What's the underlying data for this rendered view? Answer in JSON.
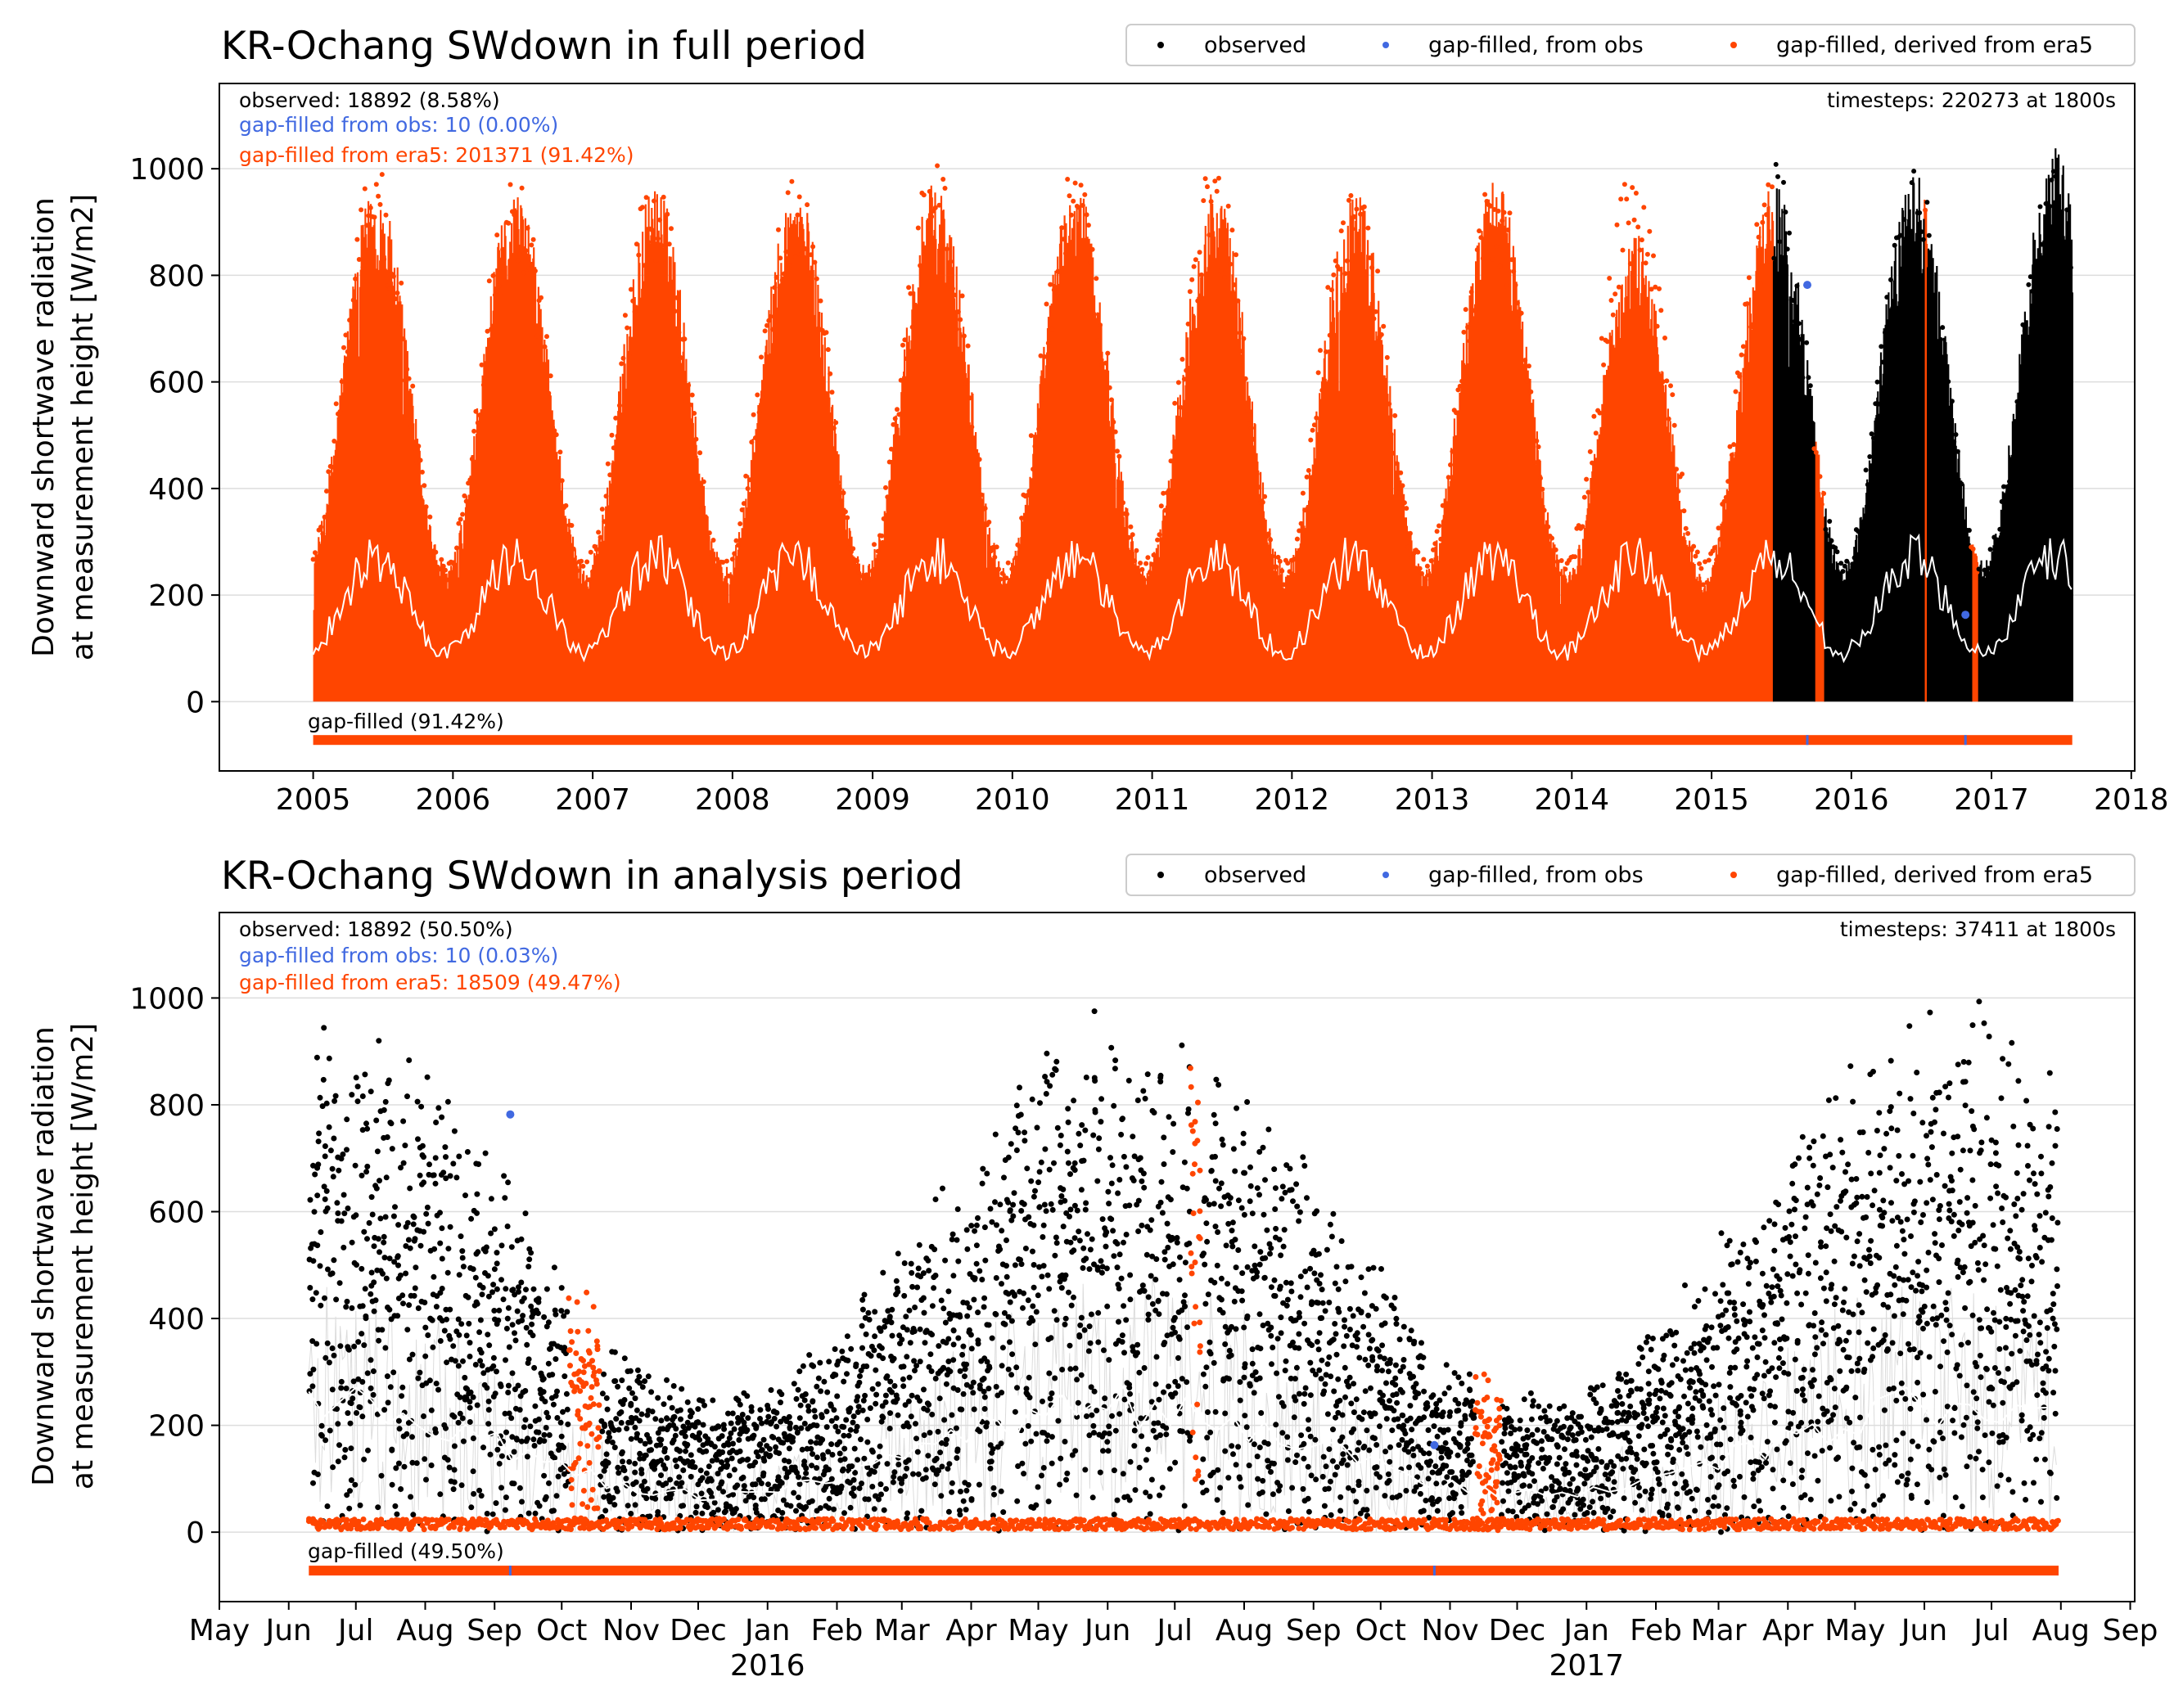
{
  "colors": {
    "observed": "#000000",
    "gap_obs": "#4169e1",
    "gap_era5": "#ff4500",
    "mean_line": "#ffffff",
    "grid": "#dddddd"
  },
  "chart_data": [
    {
      "type": "scatter",
      "title": "KR-Ochang SWdown in full period",
      "ylabel": [
        "Downward shortwave radiation",
        "at measurement height [W/m2]"
      ],
      "ylim": [
        -130,
        1160
      ],
      "yticks": [
        0,
        200,
        400,
        600,
        800,
        1000
      ],
      "xlim": [
        "2004-05-01",
        "2018-01-10"
      ],
      "xticks": [
        {
          "date": "2005-01-01",
          "label": "2005"
        },
        {
          "date": "2006-01-01",
          "label": "2006"
        },
        {
          "date": "2007-01-01",
          "label": "2007"
        },
        {
          "date": "2008-01-01",
          "label": "2008"
        },
        {
          "date": "2009-01-01",
          "label": "2009"
        },
        {
          "date": "2010-01-01",
          "label": "2010"
        },
        {
          "date": "2011-01-01",
          "label": "2011"
        },
        {
          "date": "2012-01-01",
          "label": "2012"
        },
        {
          "date": "2013-01-01",
          "label": "2013"
        },
        {
          "date": "2014-01-01",
          "label": "2014"
        },
        {
          "date": "2015-01-01",
          "label": "2015"
        },
        {
          "date": "2016-01-01",
          "label": "2016"
        },
        {
          "date": "2017-01-01",
          "label": "2017"
        },
        {
          "date": "2018-01-01",
          "label": "2018"
        }
      ],
      "period": [
        "2005-01-01",
        "2017-07-31"
      ],
      "observed_from": "2015-06-10",
      "stats": {
        "observed": "observed: 18892 (8.58%)",
        "gap_obs": "gap-filled from obs: 10 (0.00%)",
        "gap_era5": "gap-filled from era5: 201371 (91.42%)",
        "timesteps": "timesteps: 220273 at 1800s",
        "gapfilled": "gap-filled (91.42%)"
      },
      "legend": [
        "observed",
        "gap-filled, from obs",
        "gap-filled, derived from era5"
      ],
      "era5_gaps": [
        [
          "2015-09-25",
          "2015-10-20"
        ],
        [
          "2016-07-08",
          "2016-07-14"
        ],
        [
          "2016-11-08",
          "2016-11-25"
        ]
      ],
      "annual_peaks": [
        970,
        965,
        975,
        970,
        975,
        970,
        965,
        960,
        985,
        880,
        975,
        1000,
        1040
      ],
      "mean_line_range": [
        90,
        290
      ],
      "gap_obs_points": [
        {
          "date": "2015-09-08",
          "value": 782
        },
        {
          "date": "2016-10-25",
          "value": 163
        }
      ]
    },
    {
      "type": "scatter",
      "title": "KR-Ochang SWdown in analysis period",
      "ylabel": [
        "Downward shortwave radiation",
        "at measurement height [W/m2]"
      ],
      "ylim": [
        -130,
        1160
      ],
      "yticks": [
        0,
        200,
        400,
        600,
        800,
        1000
      ],
      "xlim": [
        "2015-05-01",
        "2017-09-03"
      ],
      "xticks": [
        {
          "date": "2015-05-01",
          "label": "May"
        },
        {
          "date": "2015-06-01",
          "label": "Jun"
        },
        {
          "date": "2015-07-01",
          "label": "Jul"
        },
        {
          "date": "2015-08-01",
          "label": "Aug"
        },
        {
          "date": "2015-09-01",
          "label": "Sep"
        },
        {
          "date": "2015-10-01",
          "label": "Oct"
        },
        {
          "date": "2015-11-01",
          "label": "Nov"
        },
        {
          "date": "2015-12-01",
          "label": "Dec"
        },
        {
          "date": "2016-01-01",
          "label": "Jan"
        },
        {
          "date": "2016-02-01",
          "label": "Feb"
        },
        {
          "date": "2016-03-01",
          "label": "Mar"
        },
        {
          "date": "2016-04-01",
          "label": "Apr"
        },
        {
          "date": "2016-05-01",
          "label": "May"
        },
        {
          "date": "2016-06-01",
          "label": "Jun"
        },
        {
          "date": "2016-07-01",
          "label": "Jul"
        },
        {
          "date": "2016-08-01",
          "label": "Aug"
        },
        {
          "date": "2016-09-01",
          "label": "Sep"
        },
        {
          "date": "2016-10-01",
          "label": "Oct"
        },
        {
          "date": "2016-11-01",
          "label": "Nov"
        },
        {
          "date": "2016-12-01",
          "label": "Dec"
        },
        {
          "date": "2017-01-01",
          "label": "Jan"
        },
        {
          "date": "2017-02-01",
          "label": "Feb"
        },
        {
          "date": "2017-03-01",
          "label": "Mar"
        },
        {
          "date": "2017-04-01",
          "label": "Apr"
        },
        {
          "date": "2017-05-01",
          "label": "May"
        },
        {
          "date": "2017-06-01",
          "label": "Jun"
        },
        {
          "date": "2017-07-01",
          "label": "Jul"
        },
        {
          "date": "2017-08-01",
          "label": "Aug"
        },
        {
          "date": "2017-09-01",
          "label": "Sep"
        }
      ],
      "year_labels": [
        {
          "date": "2016-01-01",
          "label": "2016"
        },
        {
          "date": "2017-01-01",
          "label": "2017"
        }
      ],
      "period": [
        "2015-06-10",
        "2017-07-31"
      ],
      "stats": {
        "observed": "observed: 18892 (50.50%)",
        "gap_obs": "gap-filled from obs: 10 (0.03%)",
        "gap_era5": "gap-filled from era5: 18509 (49.47%)",
        "timesteps": "timesteps: 37411 at 1800s",
        "gapfilled": "gap-filled (49.50%)"
      },
      "legend": [
        "observed",
        "gap-filled, from obs",
        "gap-filled, derived from era5"
      ],
      "era5_gaps": [
        [
          "2015-10-04",
          "2015-10-16"
        ],
        [
          "2016-07-08",
          "2016-07-11"
        ],
        [
          "2016-11-12",
          "2016-11-22"
        ]
      ],
      "gap_obs_points": [
        {
          "date": "2015-09-08",
          "value": 782
        },
        {
          "date": "2016-10-25",
          "value": 163
        }
      ]
    }
  ]
}
